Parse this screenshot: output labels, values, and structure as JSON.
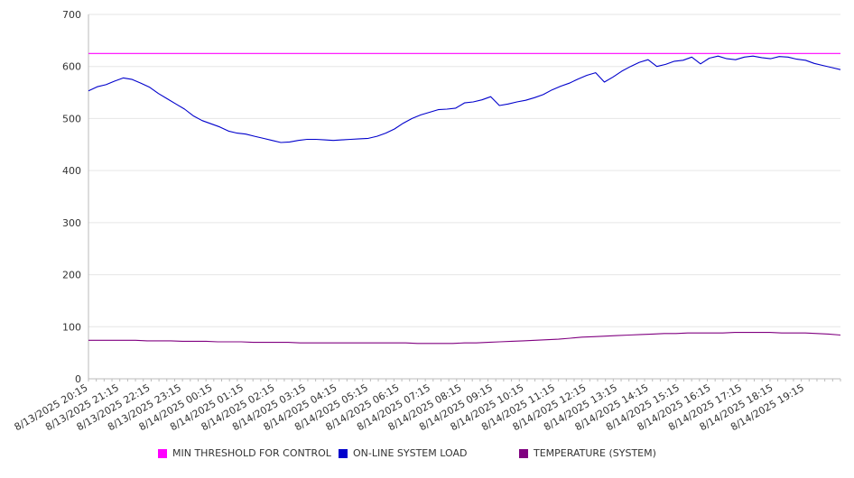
{
  "chart_data": {
    "type": "line",
    "x_labels": [
      "8/13/2025 20:15",
      "8/13/2025 21:15",
      "8/13/2025 22:15",
      "8/13/2025 23:15",
      "8/14/2025 00:15",
      "8/14/2025 01:15",
      "8/14/2025 02:15",
      "8/14/2025 03:15",
      "8/14/2025 04:15",
      "8/14/2025 05:15",
      "8/14/2025 06:15",
      "8/14/2025 07:15",
      "8/14/2025 08:15",
      "8/14/2025 09:15",
      "8/14/2025 10:15",
      "8/14/2025 11:15",
      "8/14/2025 12:15",
      "8/14/2025 13:15",
      "8/14/2025 14:15",
      "8/14/2025 15:15",
      "8/14/2025 16:15",
      "8/14/2025 17:15",
      "8/14/2025 18:15",
      "8/14/2025 19:15"
    ],
    "ylim": [
      0,
      700
    ],
    "y_ticks": [
      "0",
      "100",
      "200",
      "300",
      "400",
      "500",
      "600",
      "700"
    ],
    "grid": true,
    "legend_position": "bottom",
    "series": [
      {
        "name": "MIN THRESHOLD FOR CONTROL",
        "color": "#ff00ff",
        "kind": "constant",
        "values": [
          625,
          625
        ]
      },
      {
        "name": "ON-LINE SYSTEM LOAD",
        "color": "#0000cc",
        "values": [
          553,
          561,
          565,
          572,
          578,
          575,
          568,
          560,
          548,
          538,
          528,
          518,
          505,
          496,
          490,
          484,
          476,
          472,
          470,
          466,
          462,
          458,
          454,
          455,
          458,
          460,
          460,
          459,
          458,
          459,
          460,
          461,
          462,
          466,
          472,
          480,
          491,
          500,
          507,
          512,
          517,
          518,
          520,
          530,
          532,
          536,
          542,
          525,
          528,
          532,
          535,
          540,
          546,
          555,
          562,
          568,
          576,
          583,
          588,
          570,
          580,
          591,
          600,
          608,
          613,
          600,
          604,
          610,
          612,
          618,
          605,
          616,
          620,
          615,
          613,
          618,
          620,
          617,
          615,
          619,
          618,
          614,
          612,
          606,
          602,
          598,
          594
        ]
      },
      {
        "name": "TEMPERATURE (SYSTEM)",
        "color": "#800080",
        "values": [
          74,
          74,
          74,
          74,
          74,
          73,
          73,
          73,
          72,
          72,
          72,
          71,
          71,
          71,
          70,
          70,
          70,
          70,
          69,
          69,
          69,
          69,
          69,
          69,
          69,
          69,
          69,
          69,
          68,
          68,
          68,
          68,
          69,
          69,
          70,
          71,
          72,
          73,
          74,
          75,
          76,
          78,
          80,
          81,
          82,
          83,
          84,
          85,
          86,
          87,
          87,
          88,
          88,
          88,
          88,
          89,
          89,
          89,
          89,
          88,
          88,
          88,
          87,
          86,
          84
        ]
      }
    ]
  },
  "legend": {
    "items": [
      {
        "label": "MIN THRESHOLD FOR CONTROL",
        "color": "#ff00ff"
      },
      {
        "label": "ON-LINE SYSTEM LOAD",
        "color": "#0000cc"
      },
      {
        "label": "TEMPERATURE (SYSTEM)",
        "color": "#800080"
      }
    ]
  }
}
